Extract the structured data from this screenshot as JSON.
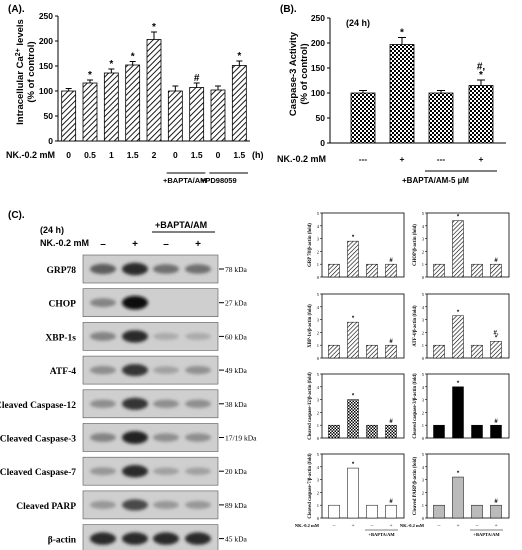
{
  "chart_data": [
    {
      "panel": "(A).",
      "type": "bar",
      "ylabel_line1": "Intracellular Ca",
      "ylabel_sup": "2+",
      "ylabel_line1_end": " levels",
      "ylabel_line2": "(% of control)",
      "ylim": [
        0,
        250
      ],
      "yticks": [
        "0",
        "50",
        "100",
        "150",
        "200",
        "250"
      ],
      "ytick_values": [
        0,
        50,
        100,
        150,
        200,
        250
      ],
      "categories": [
        "0",
        "0.5",
        "1",
        "1.5",
        "2",
        "0",
        "1.5",
        "0",
        "1.5"
      ],
      "unit": "(h)",
      "values": [
        100,
        116,
        136,
        152,
        203,
        100,
        107,
        102,
        151
      ],
      "errors": [
        5,
        6,
        8,
        7,
        15,
        10,
        9,
        8,
        9
      ],
      "marks": [
        "",
        "*",
        "*",
        "*",
        "*",
        "",
        "#",
        "",
        "*"
      ],
      "row_label": "NK.-0.2 mM",
      "group_labels": [
        "+BAPTA/AM",
        "+PD98059"
      ],
      "fill": "diagonal-hatch"
    },
    {
      "panel": "(B).",
      "type": "bar",
      "ylabel_line1": "Caspase-3 Activity",
      "ylabel_line2": "(% of control)",
      "note": "(24 h)",
      "ylim": [
        0,
        250
      ],
      "yticks": [
        "0",
        "50",
        "100",
        "150",
        "200",
        "250"
      ],
      "ytick_values": [
        0,
        50,
        100,
        150,
        200,
        250
      ],
      "categories": [
        "---",
        "+",
        "---",
        "+"
      ],
      "values": [
        100,
        197,
        100,
        115
      ],
      "errors": [
        5,
        14,
        5,
        11
      ],
      "marks": [
        "",
        "*",
        "",
        "#,\n*"
      ],
      "row_label": "NK.-0.2 mM",
      "group_labels": [
        "+BAPTA/AM-5 µM"
      ],
      "fill": "checker"
    },
    {
      "panel": "(C).",
      "type": "western-blot",
      "time": "(24 h)",
      "header": "+BAPTA/AM",
      "row_label": "NK.-0.2 mM",
      "lane_marks": [
        "–",
        "+",
        "–",
        "+"
      ],
      "bands": [
        {
          "name": "GRP78",
          "kda": "78 kDa",
          "intensity": [
            0.55,
            0.8,
            0.45,
            0.45
          ]
        },
        {
          "name": "CHOP",
          "kda": "27 kDa",
          "intensity": [
            0.35,
            0.95,
            0.02,
            0.02
          ]
        },
        {
          "name": "XBP-1s",
          "kda": "60 kDa",
          "intensity": [
            0.35,
            0.8,
            0.15,
            0.15
          ]
        },
        {
          "name": "ATF-4",
          "kda": "49 kDa",
          "intensity": [
            0.3,
            0.75,
            0.2,
            0.28
          ]
        },
        {
          "name": "Cleaved Caspase-12",
          "kda": "38 kDa",
          "intensity": [
            0.3,
            0.75,
            0.3,
            0.3
          ]
        },
        {
          "name": "Cleaved Caspase-3",
          "kda": "17/19 kDa",
          "intensity": [
            0.35,
            0.85,
            0.3,
            0.3
          ]
        },
        {
          "name": "Cleaved Caspase-7",
          "kda": "20 kDa",
          "intensity": [
            0.25,
            0.8,
            0.2,
            0.2
          ]
        },
        {
          "name": "Cleaved PARP",
          "kda": "89 kDa",
          "intensity": [
            0.25,
            0.65,
            0.25,
            0.25
          ]
        },
        {
          "name": "β-actin",
          "kda": "45 kDa",
          "intensity": [
            0.8,
            0.8,
            0.8,
            0.8
          ]
        }
      ]
    },
    {
      "type": "bar-grid",
      "row_label": "NK.-0.2 mM",
      "lane_marks": [
        "–",
        "+",
        "–",
        "+"
      ],
      "group_label": "+BAPTA/AM",
      "panels": [
        {
          "ylabel": "GRP 78/β-actin (fold)",
          "yticks": [
            "0",
            "1",
            "2",
            "3",
            "4",
            "5"
          ],
          "ymax": 5,
          "values": [
            1.0,
            2.8,
            1.0,
            1.0
          ],
          "marks": [
            "",
            "*",
            "",
            "#"
          ],
          "fill": "hatch"
        },
        {
          "ylabel": "CHOP/β-actin (fold)",
          "yticks": [
            "0",
            "1",
            "2",
            "3",
            "4",
            "5"
          ],
          "ymax": 5,
          "values": [
            1.0,
            4.4,
            1.0,
            1.0
          ],
          "marks": [
            "",
            "*",
            "",
            "#"
          ],
          "fill": "hatch"
        },
        {
          "ylabel": "XBP-1s/β-actin (fold)",
          "yticks": [
            "0",
            "1",
            "2",
            "3",
            "4",
            "5"
          ],
          "ymax": 5,
          "values": [
            1.0,
            2.8,
            1.0,
            1.0
          ],
          "marks": [
            "",
            "*",
            "",
            "#"
          ],
          "fill": "hatch"
        },
        {
          "ylabel": "ATF-4/β-actin (fold)",
          "yticks": [
            "0",
            "1",
            "2",
            "3",
            "4",
            "5"
          ],
          "ymax": 5,
          "values": [
            1.0,
            3.3,
            1.0,
            1.3
          ],
          "marks": [
            "",
            "*",
            "",
            "#,\n*"
          ],
          "fill": "hatch"
        },
        {
          "ylabel": "Cleaved caspase-12/β-actin (fold)",
          "yticks": [
            "0",
            "1",
            "2",
            "3",
            "4",
            "5"
          ],
          "ymax": 5,
          "values": [
            1.0,
            3.0,
            1.0,
            1.0
          ],
          "marks": [
            "",
            "*",
            "",
            "#"
          ],
          "fill": "checker"
        },
        {
          "ylabel": "Cleaved caspase-3/β-actin (fold)",
          "yticks": [
            "0",
            "1",
            "2",
            "3",
            "4",
            "5"
          ],
          "ymax": 5,
          "values": [
            1.0,
            4.0,
            1.0,
            1.0
          ],
          "marks": [
            "",
            "*",
            "",
            "#"
          ],
          "fill": "black"
        },
        {
          "ylabel": "Cleaved caspase-7/β-actin (fold)",
          "yticks": [
            "0",
            "1",
            "2",
            "3",
            "4",
            "5"
          ],
          "ymax": 5,
          "values": [
            1.0,
            3.9,
            1.0,
            1.0
          ],
          "marks": [
            "",
            "*",
            "",
            "#"
          ],
          "fill": "white"
        },
        {
          "ylabel": "Cleaved PARP/β-actin (fold)",
          "yticks": [
            "0",
            "1",
            "2",
            "3",
            "4",
            "5"
          ],
          "ymax": 5,
          "values": [
            1.0,
            3.2,
            1.0,
            1.0
          ],
          "marks": [
            "",
            "*",
            "",
            "#"
          ],
          "fill": "gray"
        }
      ]
    }
  ]
}
